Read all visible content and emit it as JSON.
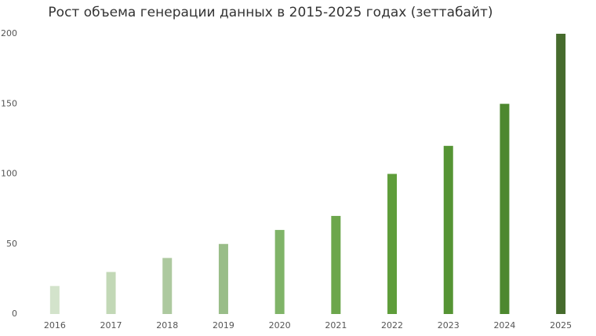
{
  "chart_data": {
    "type": "bar",
    "title": "Рост объема генерации данных в 2015-2025 годах (зеттабайт)",
    "categories": [
      "2016",
      "2017",
      "2018",
      "2019",
      "2020",
      "2021",
      "2022",
      "2023",
      "2024",
      "2025"
    ],
    "values": [
      20,
      30,
      40,
      50,
      60,
      70,
      100,
      120,
      150,
      200
    ],
    "colors": [
      "#d3e3cb",
      "#c2d8b6",
      "#adc99f",
      "#99bd88",
      "#80b468",
      "#6ca64b",
      "#5e9d3a",
      "#559434",
      "#4d882f",
      "#466b2d"
    ],
    "ylim": [
      0,
      200
    ],
    "yticks": [
      0,
      50,
      100,
      150,
      200
    ],
    "grid": false
  }
}
